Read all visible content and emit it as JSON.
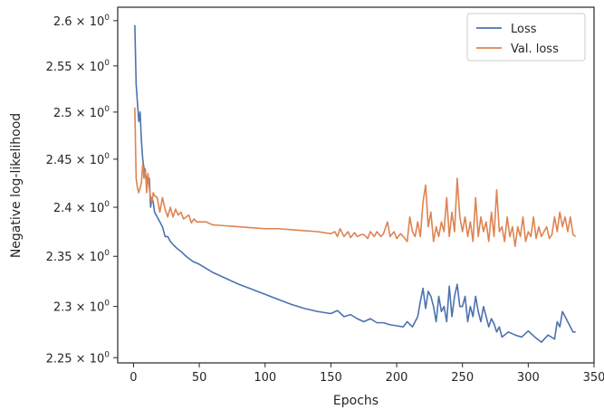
{
  "chart_data": {
    "type": "line",
    "xlabel": "Epochs",
    "ylabel": "Negative log-likelihood",
    "xlim": [
      -12,
      350
    ],
    "ylim": [
      2.245,
      2.615
    ],
    "y_scale": "log",
    "grid": false,
    "legend_position": "top-right",
    "x_ticks": [
      0,
      50,
      100,
      150,
      200,
      250,
      300,
      350
    ],
    "x_tick_labels": [
      "0",
      "50",
      "100",
      "150",
      "200",
      "250",
      "300",
      "350"
    ],
    "y_ticks": [
      2.25,
      2.3,
      2.35,
      2.4,
      2.45,
      2.5,
      2.55,
      2.6
    ],
    "y_tick_labels": [
      {
        "base": "2.25",
        "sep": " × ",
        "pow": "10",
        "exp": "0"
      },
      {
        "base": "2.3",
        "sep": " × ",
        "pow": "10",
        "exp": "0"
      },
      {
        "base": "2.35",
        "sep": " × ",
        "pow": "10",
        "exp": "0"
      },
      {
        "base": "2.4",
        "sep": " × ",
        "pow": "10",
        "exp": "0"
      },
      {
        "base": "2.45",
        "sep": " × ",
        "pow": "10",
        "exp": "0"
      },
      {
        "base": "2.5",
        "sep": " × ",
        "pow": "10",
        "exp": "0"
      },
      {
        "base": "2.55",
        "sep": " × ",
        "pow": "10",
        "exp": "0"
      },
      {
        "base": "2.6",
        "sep": " × ",
        "pow": "10",
        "exp": "0"
      }
    ],
    "series": [
      {
        "name": "Loss",
        "color": "#4c72b0",
        "x": [
          1,
          2,
          3,
          4,
          5,
          6,
          7,
          8,
          9,
          10,
          11,
          12,
          13,
          14,
          15,
          16,
          18,
          20,
          22,
          24,
          26,
          28,
          30,
          33,
          36,
          40,
          45,
          50,
          55,
          60,
          70,
          80,
          90,
          100,
          110,
          120,
          130,
          140,
          150,
          155,
          160,
          165,
          170,
          175,
          180,
          185,
          190,
          195,
          200,
          205,
          208,
          212,
          216,
          218,
          220,
          222,
          224,
          226,
          228,
          230,
          232,
          234,
          236,
          238,
          240,
          242,
          244,
          246,
          248,
          250,
          252,
          254,
          256,
          258,
          260,
          262,
          264,
          266,
          268,
          270,
          272,
          274,
          276,
          278,
          280,
          285,
          290,
          295,
          300,
          305,
          310,
          315,
          320,
          322,
          324,
          326,
          328,
          330,
          332,
          334,
          336
        ],
        "values": [
          2.595,
          2.53,
          2.51,
          2.49,
          2.5,
          2.47,
          2.45,
          2.44,
          2.435,
          2.43,
          2.425,
          2.43,
          2.4,
          2.41,
          2.405,
          2.395,
          2.39,
          2.385,
          2.38,
          2.37,
          2.37,
          2.365,
          2.362,
          2.358,
          2.355,
          2.35,
          2.345,
          2.342,
          2.338,
          2.334,
          2.328,
          2.322,
          2.317,
          2.312,
          2.307,
          2.302,
          2.298,
          2.295,
          2.293,
          2.296,
          2.29,
          2.292,
          2.288,
          2.285,
          2.288,
          2.284,
          2.284,
          2.282,
          2.281,
          2.28,
          2.285,
          2.28,
          2.29,
          2.305,
          2.318,
          2.298,
          2.315,
          2.31,
          2.3,
          2.285,
          2.31,
          2.295,
          2.3,
          2.285,
          2.32,
          2.29,
          2.31,
          2.322,
          2.3,
          2.3,
          2.31,
          2.285,
          2.3,
          2.29,
          2.31,
          2.295,
          2.285,
          2.3,
          2.29,
          2.28,
          2.288,
          2.283,
          2.275,
          2.28,
          2.27,
          2.275,
          2.272,
          2.27,
          2.276,
          2.27,
          2.265,
          2.272,
          2.268,
          2.285,
          2.28,
          2.295,
          2.29,
          2.285,
          2.28,
          2.275,
          2.275
        ]
      },
      {
        "name": "Val. loss",
        "color": "#dd8452",
        "x": [
          1,
          2,
          3,
          4,
          5,
          6,
          7,
          8,
          9,
          10,
          11,
          12,
          13,
          14,
          15,
          16,
          18,
          20,
          22,
          24,
          26,
          28,
          30,
          32,
          34,
          36,
          38,
          40,
          42,
          44,
          46,
          48,
          50,
          55,
          60,
          70,
          80,
          90,
          100,
          110,
          120,
          130,
          140,
          150,
          153,
          155,
          157,
          160,
          163,
          165,
          168,
          170,
          173,
          175,
          178,
          180,
          183,
          185,
          188,
          190,
          193,
          195,
          198,
          200,
          203,
          205,
          208,
          210,
          212,
          214,
          216,
          218,
          220,
          222,
          224,
          226,
          228,
          230,
          232,
          234,
          236,
          238,
          240,
          242,
          244,
          246,
          248,
          250,
          252,
          254,
          256,
          258,
          260,
          262,
          264,
          266,
          268,
          270,
          272,
          274,
          276,
          278,
          280,
          282,
          284,
          286,
          288,
          290,
          292,
          294,
          296,
          298,
          300,
          302,
          304,
          306,
          308,
          310,
          312,
          314,
          316,
          318,
          320,
          322,
          324,
          326,
          328,
          330,
          332,
          334,
          336
        ],
        "values": [
          2.505,
          2.43,
          2.42,
          2.415,
          2.42,
          2.425,
          2.445,
          2.43,
          2.44,
          2.415,
          2.435,
          2.42,
          2.41,
          2.405,
          2.415,
          2.412,
          2.41,
          2.395,
          2.41,
          2.398,
          2.39,
          2.4,
          2.39,
          2.398,
          2.392,
          2.395,
          2.388,
          2.39,
          2.392,
          2.384,
          2.388,
          2.385,
          2.385,
          2.385,
          2.382,
          2.381,
          2.38,
          2.379,
          2.378,
          2.378,
          2.377,
          2.376,
          2.375,
          2.373,
          2.375,
          2.37,
          2.378,
          2.37,
          2.375,
          2.369,
          2.374,
          2.37,
          2.372,
          2.372,
          2.368,
          2.375,
          2.37,
          2.375,
          2.37,
          2.373,
          2.385,
          2.37,
          2.375,
          2.368,
          2.373,
          2.37,
          2.365,
          2.39,
          2.375,
          2.37,
          2.385,
          2.37,
          2.405,
          2.423,
          2.38,
          2.395,
          2.365,
          2.38,
          2.37,
          2.385,
          2.375,
          2.41,
          2.37,
          2.395,
          2.375,
          2.43,
          2.39,
          2.375,
          2.39,
          2.37,
          2.385,
          2.365,
          2.41,
          2.37,
          2.39,
          2.375,
          2.385,
          2.365,
          2.395,
          2.37,
          2.418,
          2.375,
          2.38,
          2.365,
          2.39,
          2.37,
          2.38,
          2.36,
          2.38,
          2.37,
          2.39,
          2.365,
          2.375,
          2.37,
          2.39,
          2.368,
          2.38,
          2.37,
          2.375,
          2.38,
          2.368,
          2.372,
          2.39,
          2.375,
          2.395,
          2.38,
          2.39,
          2.375,
          2.39,
          2.372,
          2.37
        ]
      }
    ]
  }
}
